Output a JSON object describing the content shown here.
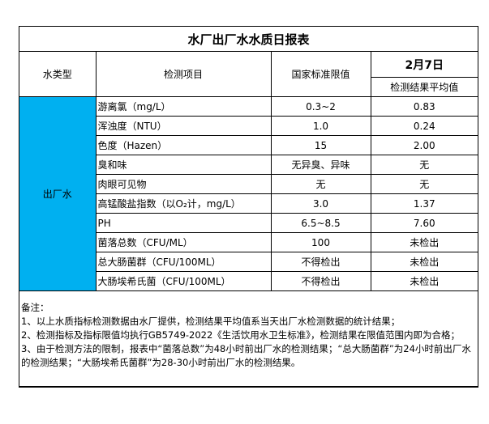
{
  "title": "水厂出厂水水质日报表",
  "headers": {
    "water_type": "水类型",
    "item": "检测项目",
    "standard": "国家标准限值",
    "date": "2月7日",
    "result": "检测结果平均值"
  },
  "water_type_value": "出厂水",
  "rows": [
    {
      "item": "游离氯（mg/L）",
      "standard": "0.3~2",
      "result": "0.83"
    },
    {
      "item": "浑浊度（NTU）",
      "standard": "1.0",
      "result": "0.24"
    },
    {
      "item": "色度（Hazen）",
      "standard": "15",
      "result": "2.00"
    },
    {
      "item": "臭和味",
      "standard": "无异臭、异味",
      "result": "无"
    },
    {
      "item": "肉眼可见物",
      "standard": "无",
      "result": "无"
    },
    {
      "item": "高锰酸盐指数（以O₂计，mg/L）",
      "standard": "3.0",
      "result": "1.37"
    },
    {
      "item": "PH",
      "standard": "6.5~8.5",
      "result": "7.60"
    },
    {
      "item": "菌落总数（CFU/ML）",
      "standard": "100",
      "result": "未检出"
    },
    {
      "item": "总大肠菌群（CFU/100ML）",
      "standard": "不得检出",
      "result": "未检出"
    },
    {
      "item": "大肠埃希氏菌（CFU/100ML）",
      "standard": "不得检出",
      "result": "未检出"
    }
  ],
  "notes": {
    "heading": "备注：",
    "lines": [
      "1、以上水质指标检测数据由水厂提供，检测结果平均值系当天出厂水检测数据的统计结果；",
      "2、检测指标及指标限值均执行GB5749-2022《生活饮用水卫生标准》，检测结果在限值范围内即为合格；",
      "3、由于检测方法的限制，报表中“菌落总数”为48小时前出厂水的检测结果；“总大肠菌群”为24小时前出厂水的检测结果；“大肠埃希氏菌群”为28-30小时前出厂水的检测结果。"
    ]
  },
  "colors": {
    "highlight": "#00B0F0"
  }
}
